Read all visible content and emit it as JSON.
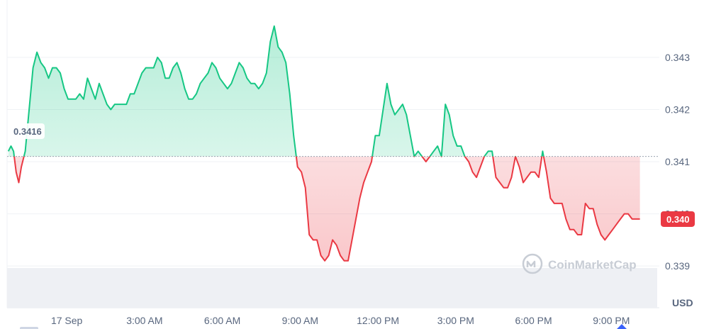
{
  "watermark": "CoinMarketCap",
  "colors": {
    "up": "#16c784",
    "down": "#ea3943",
    "grid": "#eff2f5",
    "text": "#58667e"
  },
  "chart_data": {
    "type": "area",
    "baseline": 0.3416,
    "baseline_label": "0.3416",
    "current_label": "0.340",
    "currency": "USD",
    "y_ticks": [
      {
        "value": 0.3395,
        "label": "0.339"
      },
      {
        "value": 0.3405,
        "label": "0.340"
      },
      {
        "value": 0.3415,
        "label": "0.341"
      },
      {
        "value": 0.3425,
        "label": "0.342"
      },
      {
        "value": 0.3435,
        "label": "0.343"
      }
    ],
    "x_ticks": [
      {
        "value": 0,
        "label": "17 Sep"
      },
      {
        "value": 3,
        "label": "3:00 AM"
      },
      {
        "value": 6,
        "label": "6:00 AM"
      },
      {
        "value": 9,
        "label": "9:00 AM"
      },
      {
        "value": 12,
        "label": "12:00 PM"
      },
      {
        "value": 15,
        "label": "3:00 PM"
      },
      {
        "value": 18,
        "label": "6:00 PM"
      },
      {
        "value": 21,
        "label": "9:00 PM"
      }
    ],
    "ylim": [
      0.3387,
      0.3446
    ],
    "xlim": [
      -2.3,
      22.85
    ],
    "series": [
      {
        "points": [
          [
            -2.25,
            0.3417
          ],
          [
            -2.15,
            0.3418
          ],
          [
            -2.05,
            0.3417
          ],
          [
            -1.95,
            0.3413
          ],
          [
            -1.85,
            0.3411
          ],
          [
            -1.75,
            0.3414
          ],
          [
            -1.6,
            0.3417
          ],
          [
            -1.45,
            0.3425
          ],
          [
            -1.3,
            0.3433
          ],
          [
            -1.15,
            0.3436
          ],
          [
            -1.0,
            0.3434
          ],
          [
            -0.85,
            0.3433
          ],
          [
            -0.7,
            0.3431
          ],
          [
            -0.55,
            0.3433
          ],
          [
            -0.4,
            0.3433
          ],
          [
            -0.25,
            0.3432
          ],
          [
            -0.1,
            0.3429
          ],
          [
            0.05,
            0.3427
          ],
          [
            0.2,
            0.3427
          ],
          [
            0.35,
            0.3427
          ],
          [
            0.5,
            0.3428
          ],
          [
            0.65,
            0.3427
          ],
          [
            0.8,
            0.3431
          ],
          [
            0.95,
            0.3429
          ],
          [
            1.1,
            0.3427
          ],
          [
            1.25,
            0.343
          ],
          [
            1.4,
            0.3428
          ],
          [
            1.55,
            0.3426
          ],
          [
            1.7,
            0.3425
          ],
          [
            1.85,
            0.3426
          ],
          [
            2.0,
            0.3426
          ],
          [
            2.15,
            0.3426
          ],
          [
            2.3,
            0.3426
          ],
          [
            2.45,
            0.3428
          ],
          [
            2.6,
            0.3428
          ],
          [
            2.75,
            0.343
          ],
          [
            2.9,
            0.3432
          ],
          [
            3.05,
            0.3433
          ],
          [
            3.2,
            0.3433
          ],
          [
            3.35,
            0.3433
          ],
          [
            3.5,
            0.3435
          ],
          [
            3.65,
            0.3434
          ],
          [
            3.8,
            0.3431
          ],
          [
            3.95,
            0.3431
          ],
          [
            4.1,
            0.3433
          ],
          [
            4.25,
            0.3434
          ],
          [
            4.4,
            0.3432
          ],
          [
            4.55,
            0.3429
          ],
          [
            4.7,
            0.3427
          ],
          [
            4.85,
            0.3427
          ],
          [
            5.0,
            0.3428
          ],
          [
            5.15,
            0.343
          ],
          [
            5.3,
            0.3431
          ],
          [
            5.45,
            0.3432
          ],
          [
            5.6,
            0.3434
          ],
          [
            5.75,
            0.3433
          ],
          [
            5.9,
            0.3431
          ],
          [
            6.05,
            0.343
          ],
          [
            6.2,
            0.3429
          ],
          [
            6.35,
            0.343
          ],
          [
            6.5,
            0.3432
          ],
          [
            6.65,
            0.3434
          ],
          [
            6.8,
            0.3433
          ],
          [
            6.95,
            0.3431
          ],
          [
            7.1,
            0.343
          ],
          [
            7.25,
            0.343
          ],
          [
            7.4,
            0.3429
          ],
          [
            7.55,
            0.343
          ],
          [
            7.7,
            0.3432
          ],
          [
            7.85,
            0.3438
          ],
          [
            8.0,
            0.3441
          ],
          [
            8.15,
            0.3437
          ],
          [
            8.3,
            0.3436
          ],
          [
            8.45,
            0.3434
          ],
          [
            8.6,
            0.3428
          ],
          [
            8.75,
            0.342
          ],
          [
            8.9,
            0.3414
          ],
          [
            9.05,
            0.3413
          ],
          [
            9.2,
            0.341
          ],
          [
            9.35,
            0.3401
          ],
          [
            9.5,
            0.34
          ],
          [
            9.65,
            0.34
          ],
          [
            9.8,
            0.3397
          ],
          [
            9.95,
            0.3396
          ],
          [
            10.1,
            0.3397
          ],
          [
            10.25,
            0.34
          ],
          [
            10.4,
            0.3399
          ],
          [
            10.55,
            0.3397
          ],
          [
            10.7,
            0.3396
          ],
          [
            10.85,
            0.3396
          ],
          [
            11.0,
            0.34
          ],
          [
            11.15,
            0.3404
          ],
          [
            11.3,
            0.3408
          ],
          [
            11.45,
            0.3411
          ],
          [
            11.6,
            0.3413
          ],
          [
            11.75,
            0.3415
          ],
          [
            11.9,
            0.342
          ],
          [
            12.05,
            0.342
          ],
          [
            12.2,
            0.3425
          ],
          [
            12.35,
            0.343
          ],
          [
            12.5,
            0.3426
          ],
          [
            12.65,
            0.3424
          ],
          [
            12.8,
            0.3425
          ],
          [
            12.95,
            0.3426
          ],
          [
            13.1,
            0.3424
          ],
          [
            13.25,
            0.342
          ],
          [
            13.4,
            0.3416
          ],
          [
            13.55,
            0.3417
          ],
          [
            13.7,
            0.3416
          ],
          [
            13.85,
            0.3415
          ],
          [
            14.0,
            0.3416
          ],
          [
            14.15,
            0.3417
          ],
          [
            14.3,
            0.3418
          ],
          [
            14.45,
            0.3416
          ],
          [
            14.6,
            0.3426
          ],
          [
            14.75,
            0.3424
          ],
          [
            14.9,
            0.342
          ],
          [
            15.05,
            0.3418
          ],
          [
            15.2,
            0.3418
          ],
          [
            15.35,
            0.3416
          ],
          [
            15.5,
            0.3415
          ],
          [
            15.65,
            0.3413
          ],
          [
            15.8,
            0.3412
          ],
          [
            15.95,
            0.3414
          ],
          [
            16.1,
            0.3416
          ],
          [
            16.25,
            0.3417
          ],
          [
            16.4,
            0.3417
          ],
          [
            16.55,
            0.3412
          ],
          [
            16.7,
            0.3411
          ],
          [
            16.85,
            0.341
          ],
          [
            17.0,
            0.341
          ],
          [
            17.15,
            0.3412
          ],
          [
            17.3,
            0.3416
          ],
          [
            17.45,
            0.3414
          ],
          [
            17.6,
            0.3411
          ],
          [
            17.75,
            0.3412
          ],
          [
            17.9,
            0.3413
          ],
          [
            18.05,
            0.3413
          ],
          [
            18.2,
            0.3412
          ],
          [
            18.35,
            0.3417
          ],
          [
            18.5,
            0.3413
          ],
          [
            18.65,
            0.3408
          ],
          [
            18.8,
            0.3407
          ],
          [
            18.95,
            0.3407
          ],
          [
            19.1,
            0.3407
          ],
          [
            19.25,
            0.3404
          ],
          [
            19.4,
            0.3402
          ],
          [
            19.55,
            0.3402
          ],
          [
            19.7,
            0.3401
          ],
          [
            19.85,
            0.3401
          ],
          [
            20.0,
            0.3407
          ],
          [
            20.15,
            0.3406
          ],
          [
            20.3,
            0.3406
          ],
          [
            20.45,
            0.3403
          ],
          [
            20.6,
            0.3401
          ],
          [
            20.75,
            0.34
          ],
          [
            20.9,
            0.3401
          ],
          [
            21.05,
            0.3402
          ],
          [
            21.2,
            0.3403
          ],
          [
            21.35,
            0.3404
          ],
          [
            21.5,
            0.3405
          ],
          [
            21.65,
            0.3405
          ],
          [
            21.8,
            0.3404
          ],
          [
            21.95,
            0.3404
          ],
          [
            22.1,
            0.3404
          ]
        ]
      }
    ]
  }
}
